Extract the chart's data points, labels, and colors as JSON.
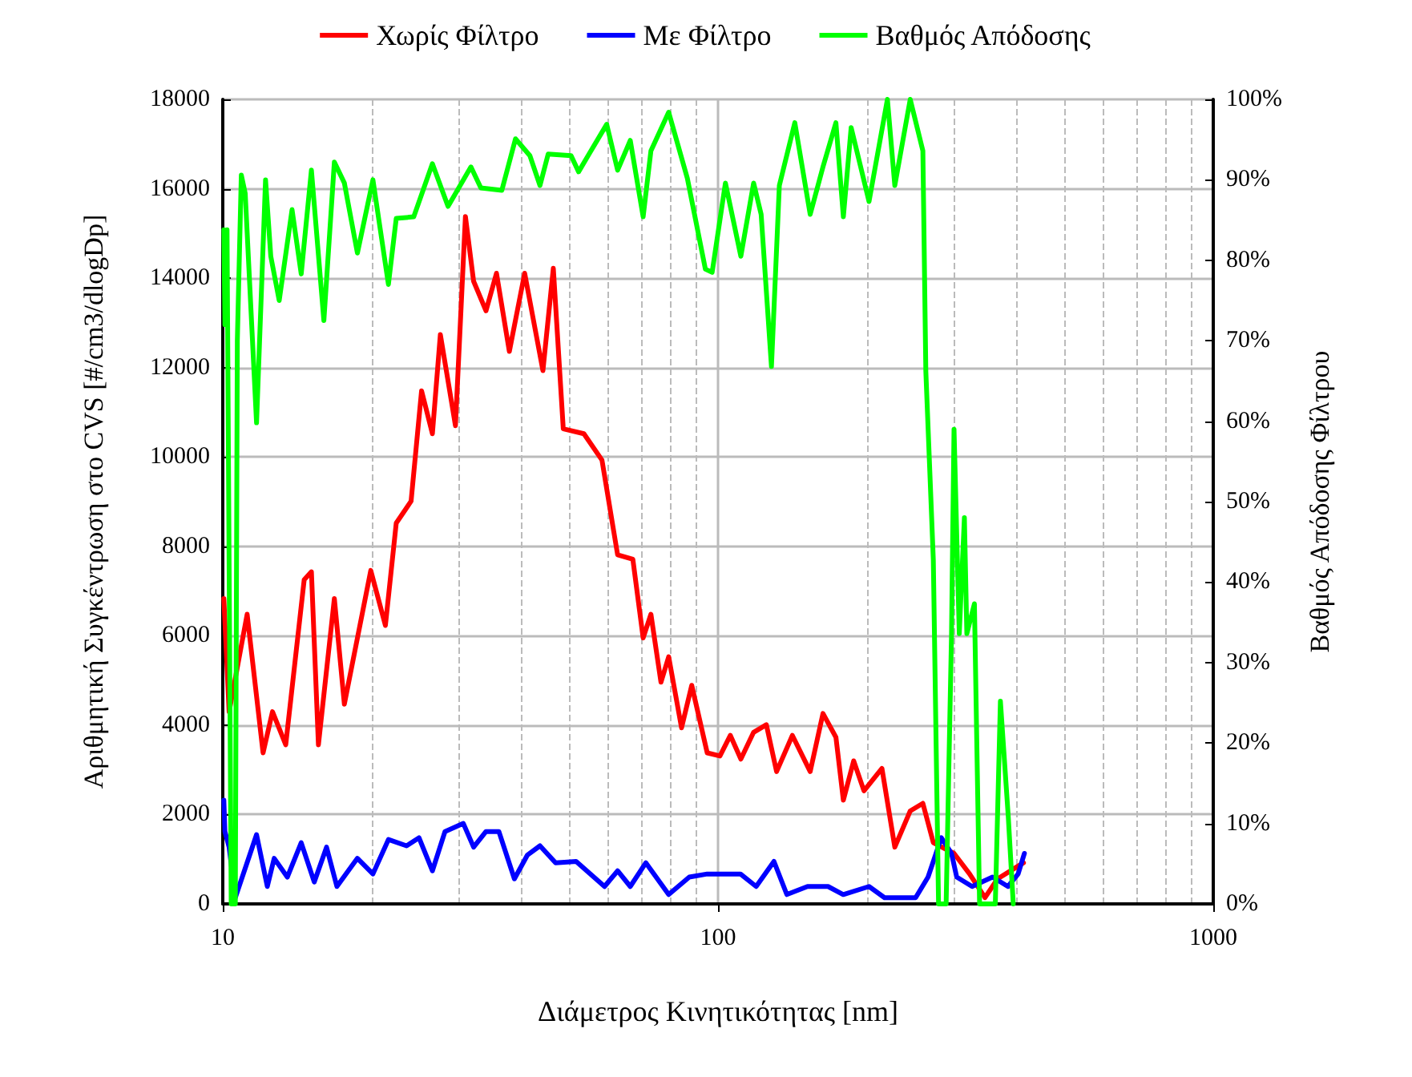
{
  "chart_data": {
    "type": "line",
    "xlabel": "Διάμετρος Κινητικότητας [nm]",
    "ylabel": "Αριθμητική Συγκέντρωση στο CVS [#/cm3/dlogDp]",
    "y2label": "Βαθμός Απόδοσης Φίλτρου",
    "log": "x",
    "xlim": [
      10,
      1000
    ],
    "xticks": [
      10,
      100,
      1000
    ],
    "ylim": [
      0,
      18000
    ],
    "yticks": [
      0,
      2000,
      4000,
      6000,
      8000,
      10000,
      12000,
      14000,
      16000,
      18000
    ],
    "y2lim": [
      0,
      100
    ],
    "y2ticks": [
      {
        "value": 0,
        "label": "0%"
      },
      {
        "value": 10,
        "label": "10%"
      },
      {
        "value": 20,
        "label": "20%"
      },
      {
        "value": 30,
        "label": "30%"
      },
      {
        "value": 40,
        "label": "40%"
      },
      {
        "value": 50,
        "label": "50%"
      },
      {
        "value": 60,
        "label": "60%"
      },
      {
        "value": 70,
        "label": "70%"
      },
      {
        "value": 80,
        "label": "80%"
      },
      {
        "value": 90,
        "label": "90%"
      },
      {
        "value": 100,
        "label": "100%"
      }
    ],
    "grid": true,
    "legend": "top",
    "marker": "none",
    "line_style": "solid",
    "series": [
      {
        "name": "Χωρίς Φίλτρο",
        "color": "#ff0000",
        "x": [
          10.05,
          10.3,
          11.2,
          12.06,
          12.6,
          13.4,
          14.6,
          15.1,
          15.6,
          16.8,
          17.6,
          19.9,
          21.3,
          22.4,
          24,
          25.2,
          26.5,
          27.5,
          29.5,
          30.9,
          32.1,
          34,
          35.7,
          37.9,
          40.7,
          44.3,
          46.5,
          48.7,
          53.6,
          58.3,
          62.7,
          67.3,
          70.6,
          73.2,
          76.7,
          79.5,
          84.4,
          88.5,
          95.1,
          100.9,
          105.9,
          111.2,
          118,
          125.2,
          131.3,
          141.3,
          153.5,
          162.9,
          173,
          179.1,
          187.9,
          197.1,
          214.3,
          227.5,
          244.4,
          259.2,
          272.1,
          299.6,
          322.1,
          346,
          366.8,
          413.8
        ],
        "values": [
          6830,
          4300,
          6480,
          3380,
          4300,
          3560,
          7250,
          7430,
          3560,
          6830,
          4470,
          7460,
          6230,
          8520,
          9010,
          11480,
          10520,
          12740,
          10700,
          15380,
          13930,
          13270,
          14110,
          12360,
          14110,
          11930,
          14220,
          10630,
          10520,
          9930,
          7810,
          7710,
          5950,
          6480,
          4960,
          5530,
          3940,
          4890,
          3380,
          3310,
          3770,
          3240,
          3840,
          4010,
          2960,
          3770,
          2960,
          4260,
          3730,
          2320,
          3200,
          2530,
          3030,
          1270,
          2080,
          2250,
          1370,
          1130,
          670,
          140,
          560,
          920
        ]
      },
      {
        "name": "Με Φίλτρο",
        "color": "#0000ff",
        "x": [
          10.05,
          10.1,
          10.3,
          10.6,
          11.7,
          12.3,
          12.7,
          13.5,
          14.4,
          15.3,
          16.2,
          17,
          18.7,
          20.1,
          21.6,
          23.5,
          24.9,
          26.5,
          28.1,
          30.6,
          32.1,
          34,
          36.1,
          38.8,
          41.2,
          43.7,
          47,
          51.7,
          59,
          62.7,
          66.5,
          71.5,
          79.5,
          87.5,
          95.1,
          98.6,
          111,
          119.4,
          129.7,
          137.7,
          151.6,
          166.8,
          179,
          201.8,
          216.9,
          250.6,
          265.5,
          282.4,
          296.1,
          303.4,
          325.9,
          358.3,
          385,
          403.6,
          415.6
        ],
        "values": [
          2320,
          1620,
          1270,
          140,
          1550,
          390,
          1020,
          600,
          1370,
          490,
          1270,
          390,
          1020,
          670,
          1440,
          1300,
          1480,
          740,
          1620,
          1800,
          1270,
          1620,
          1620,
          560,
          1090,
          1300,
          920,
          950,
          390,
          740,
          390,
          920,
          210,
          600,
          670,
          670,
          670,
          390,
          950,
          210,
          390,
          390,
          210,
          390,
          140,
          140,
          600,
          1480,
          1130,
          600,
          390,
          600,
          390,
          670,
          1130
        ]
      },
      {
        "name": "Βαθμός Απόδοσης",
        "color": "#00ff00",
        "axis": "y2",
        "x": [
          10.05,
          10.1,
          10.2,
          10.4,
          10.6,
          10.7,
          10.9,
          11.1,
          11.7,
          12.2,
          12.5,
          13,
          13.8,
          14.4,
          15.1,
          16,
          16.8,
          17.6,
          18.7,
          20.1,
          21.6,
          22.4,
          24.3,
          26.5,
          28.5,
          31.7,
          33.2,
          36.6,
          39,
          41.7,
          43.7,
          45.4,
          50.5,
          52.3,
          54.9,
          59.6,
          62.7,
          66.5,
          70.6,
          73.2,
          79.5,
          86.7,
          94.3,
          97.3,
          103.5,
          111.2,
          118,
          122.2,
          128.2,
          133,
          142.9,
          153.5,
          162.9,
          173,
          179.1,
          185.7,
          201.8,
          219.8,
          227.5,
          244.4,
          259.2,
          262.8,
          272.1,
          278.8,
          288.8,
          296.1,
          299.6,
          307,
          314.4,
          318,
          329.4,
          337.4,
          363,
          371.7,
          385.5,
          394.6
        ],
        "values": [
          83.8,
          72,
          83.8,
          0,
          0,
          70,
          90.6,
          88.3,
          59.8,
          90,
          80.5,
          75,
          86.3,
          78.3,
          91.2,
          72.5,
          92.2,
          89.6,
          80.9,
          90,
          77,
          85.2,
          85.4,
          92,
          86.7,
          91.6,
          89,
          88.7,
          95.1,
          93,
          89.3,
          93.2,
          93,
          91,
          93.2,
          96.9,
          91.2,
          94.9,
          85.4,
          93.6,
          98.4,
          90.2,
          78.9,
          78.5,
          89.6,
          80.5,
          89.6,
          85.7,
          66.8,
          89.3,
          97.1,
          85.7,
          91.6,
          97.1,
          85.4,
          96.5,
          87.3,
          100,
          89.3,
          100,
          93.6,
          66.2,
          42.8,
          0,
          0,
          33.4,
          59,
          33.6,
          48,
          33.6,
          37.3,
          0,
          0,
          25.2,
          10.9,
          0
        ]
      }
    ]
  }
}
